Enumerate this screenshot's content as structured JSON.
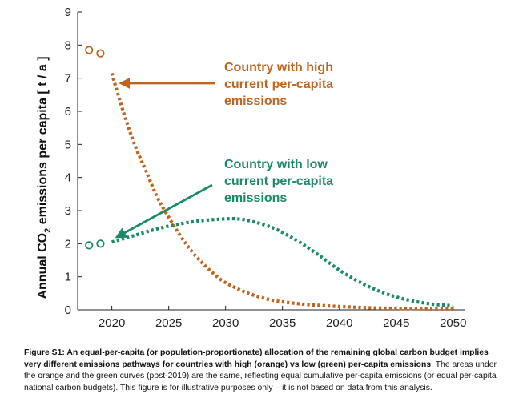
{
  "chart_data": {
    "type": "line",
    "ylabel_main": "Annual CO",
    "ylabel_sub": "2",
    "ylabel_rest": " emissions per capita [ t / a ]",
    "xlim": [
      2017,
      2051
    ],
    "ylim": [
      0,
      9
    ],
    "xticks": [
      2020,
      2025,
      2030,
      2035,
      2040,
      2045,
      2050
    ],
    "yticks": [
      0,
      1,
      2,
      3,
      4,
      5,
      6,
      7,
      8,
      9
    ],
    "series": [
      {
        "name": "high",
        "color": "#c0651f",
        "historical": {
          "x": [
            2018,
            2019
          ],
          "y": [
            7.85,
            7.75
          ]
        },
        "pathway": {
          "x": [
            2020,
            2021,
            2022,
            2023,
            2024,
            2025,
            2026,
            2027,
            2028,
            2029,
            2030,
            2032,
            2034,
            2036,
            2038,
            2040,
            2042,
            2044,
            2046,
            2048,
            2050
          ],
          "y": [
            7.15,
            6.0,
            5.0,
            4.2,
            3.4,
            2.8,
            2.25,
            1.78,
            1.4,
            1.08,
            0.82,
            0.5,
            0.3,
            0.2,
            0.14,
            0.1,
            0.07,
            0.05,
            0.04,
            0.03,
            0.03
          ]
        }
      },
      {
        "name": "low",
        "color": "#1a8a6a",
        "historical": {
          "x": [
            2018,
            2019
          ],
          "y": [
            1.95,
            2.0
          ]
        },
        "pathway": {
          "x": [
            2020,
            2022,
            2024,
            2026,
            2028,
            2030,
            2031,
            2032,
            2034,
            2036,
            2038,
            2040,
            2042,
            2044,
            2046,
            2048,
            2050
          ],
          "y": [
            2.05,
            2.25,
            2.45,
            2.6,
            2.7,
            2.75,
            2.75,
            2.7,
            2.5,
            2.15,
            1.7,
            1.2,
            0.8,
            0.5,
            0.3,
            0.18,
            0.12
          ]
        }
      }
    ],
    "annotations": [
      {
        "name": "high",
        "lines": [
          "Country with high",
          "current per-capita",
          "emissions"
        ],
        "color": "#c0651f",
        "arrow_to": [
          2020,
          7.15
        ]
      },
      {
        "name": "low",
        "lines": [
          "Country with low",
          "current per-capita",
          "emissions"
        ],
        "color": "#1a8a6a",
        "arrow_to": [
          2019.2,
          2.3
        ]
      }
    ]
  },
  "caption": {
    "label": "Figure S1",
    "bold_text": ": An equal-per-capita (or population-proportionate) allocation of the remaining global carbon budget implies very different emissions pathways for countries with high (orange) vs low (green) per-capita emissions",
    "rest_text": ". The areas under the orange and the green curves (post-2019) are the same, reflecting equal cumulative per-capita emissions (or equal per-capita national carbon budgets). This figure is for illustrative purposes only – it is not based on data from this analysis."
  }
}
